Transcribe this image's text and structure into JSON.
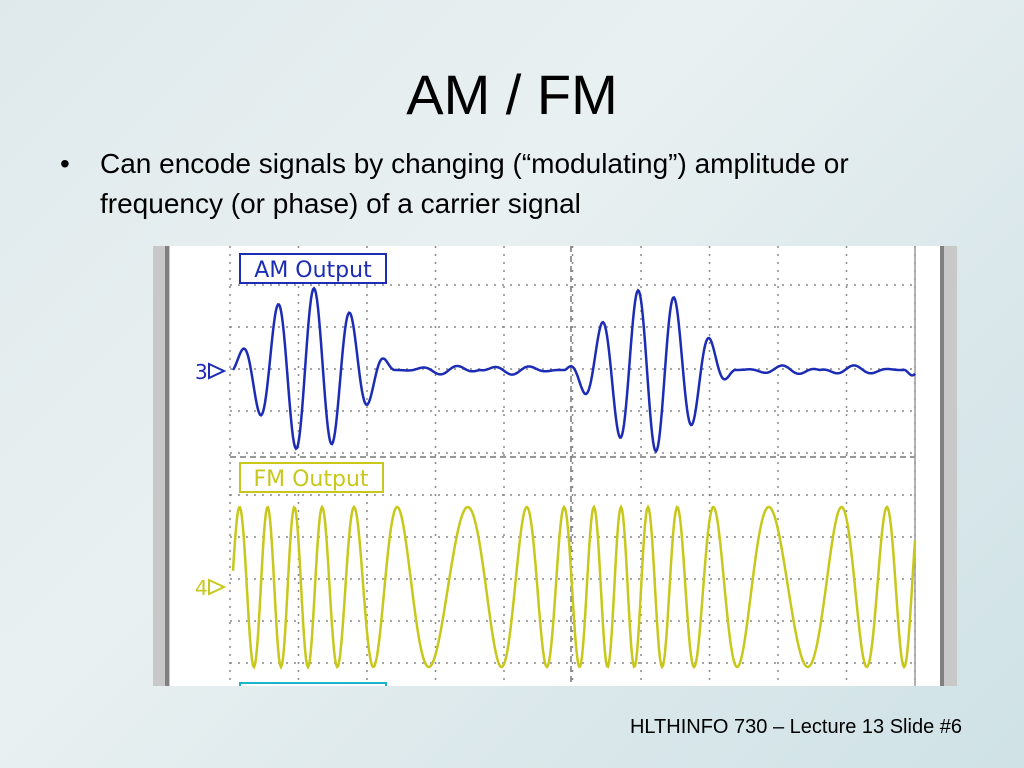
{
  "title": "AM / FM",
  "bullets": [
    "Can encode signals by changing (“modulating”) amplitude or frequency (or phase) of a carrier signal"
  ],
  "scope": {
    "channels": [
      {
        "label": "AM Output",
        "marker": "3"
      },
      {
        "label": "FM Output",
        "marker": "4"
      }
    ]
  },
  "footer": "HLTHINFO 730 – Lecture 13 Slide #6"
}
